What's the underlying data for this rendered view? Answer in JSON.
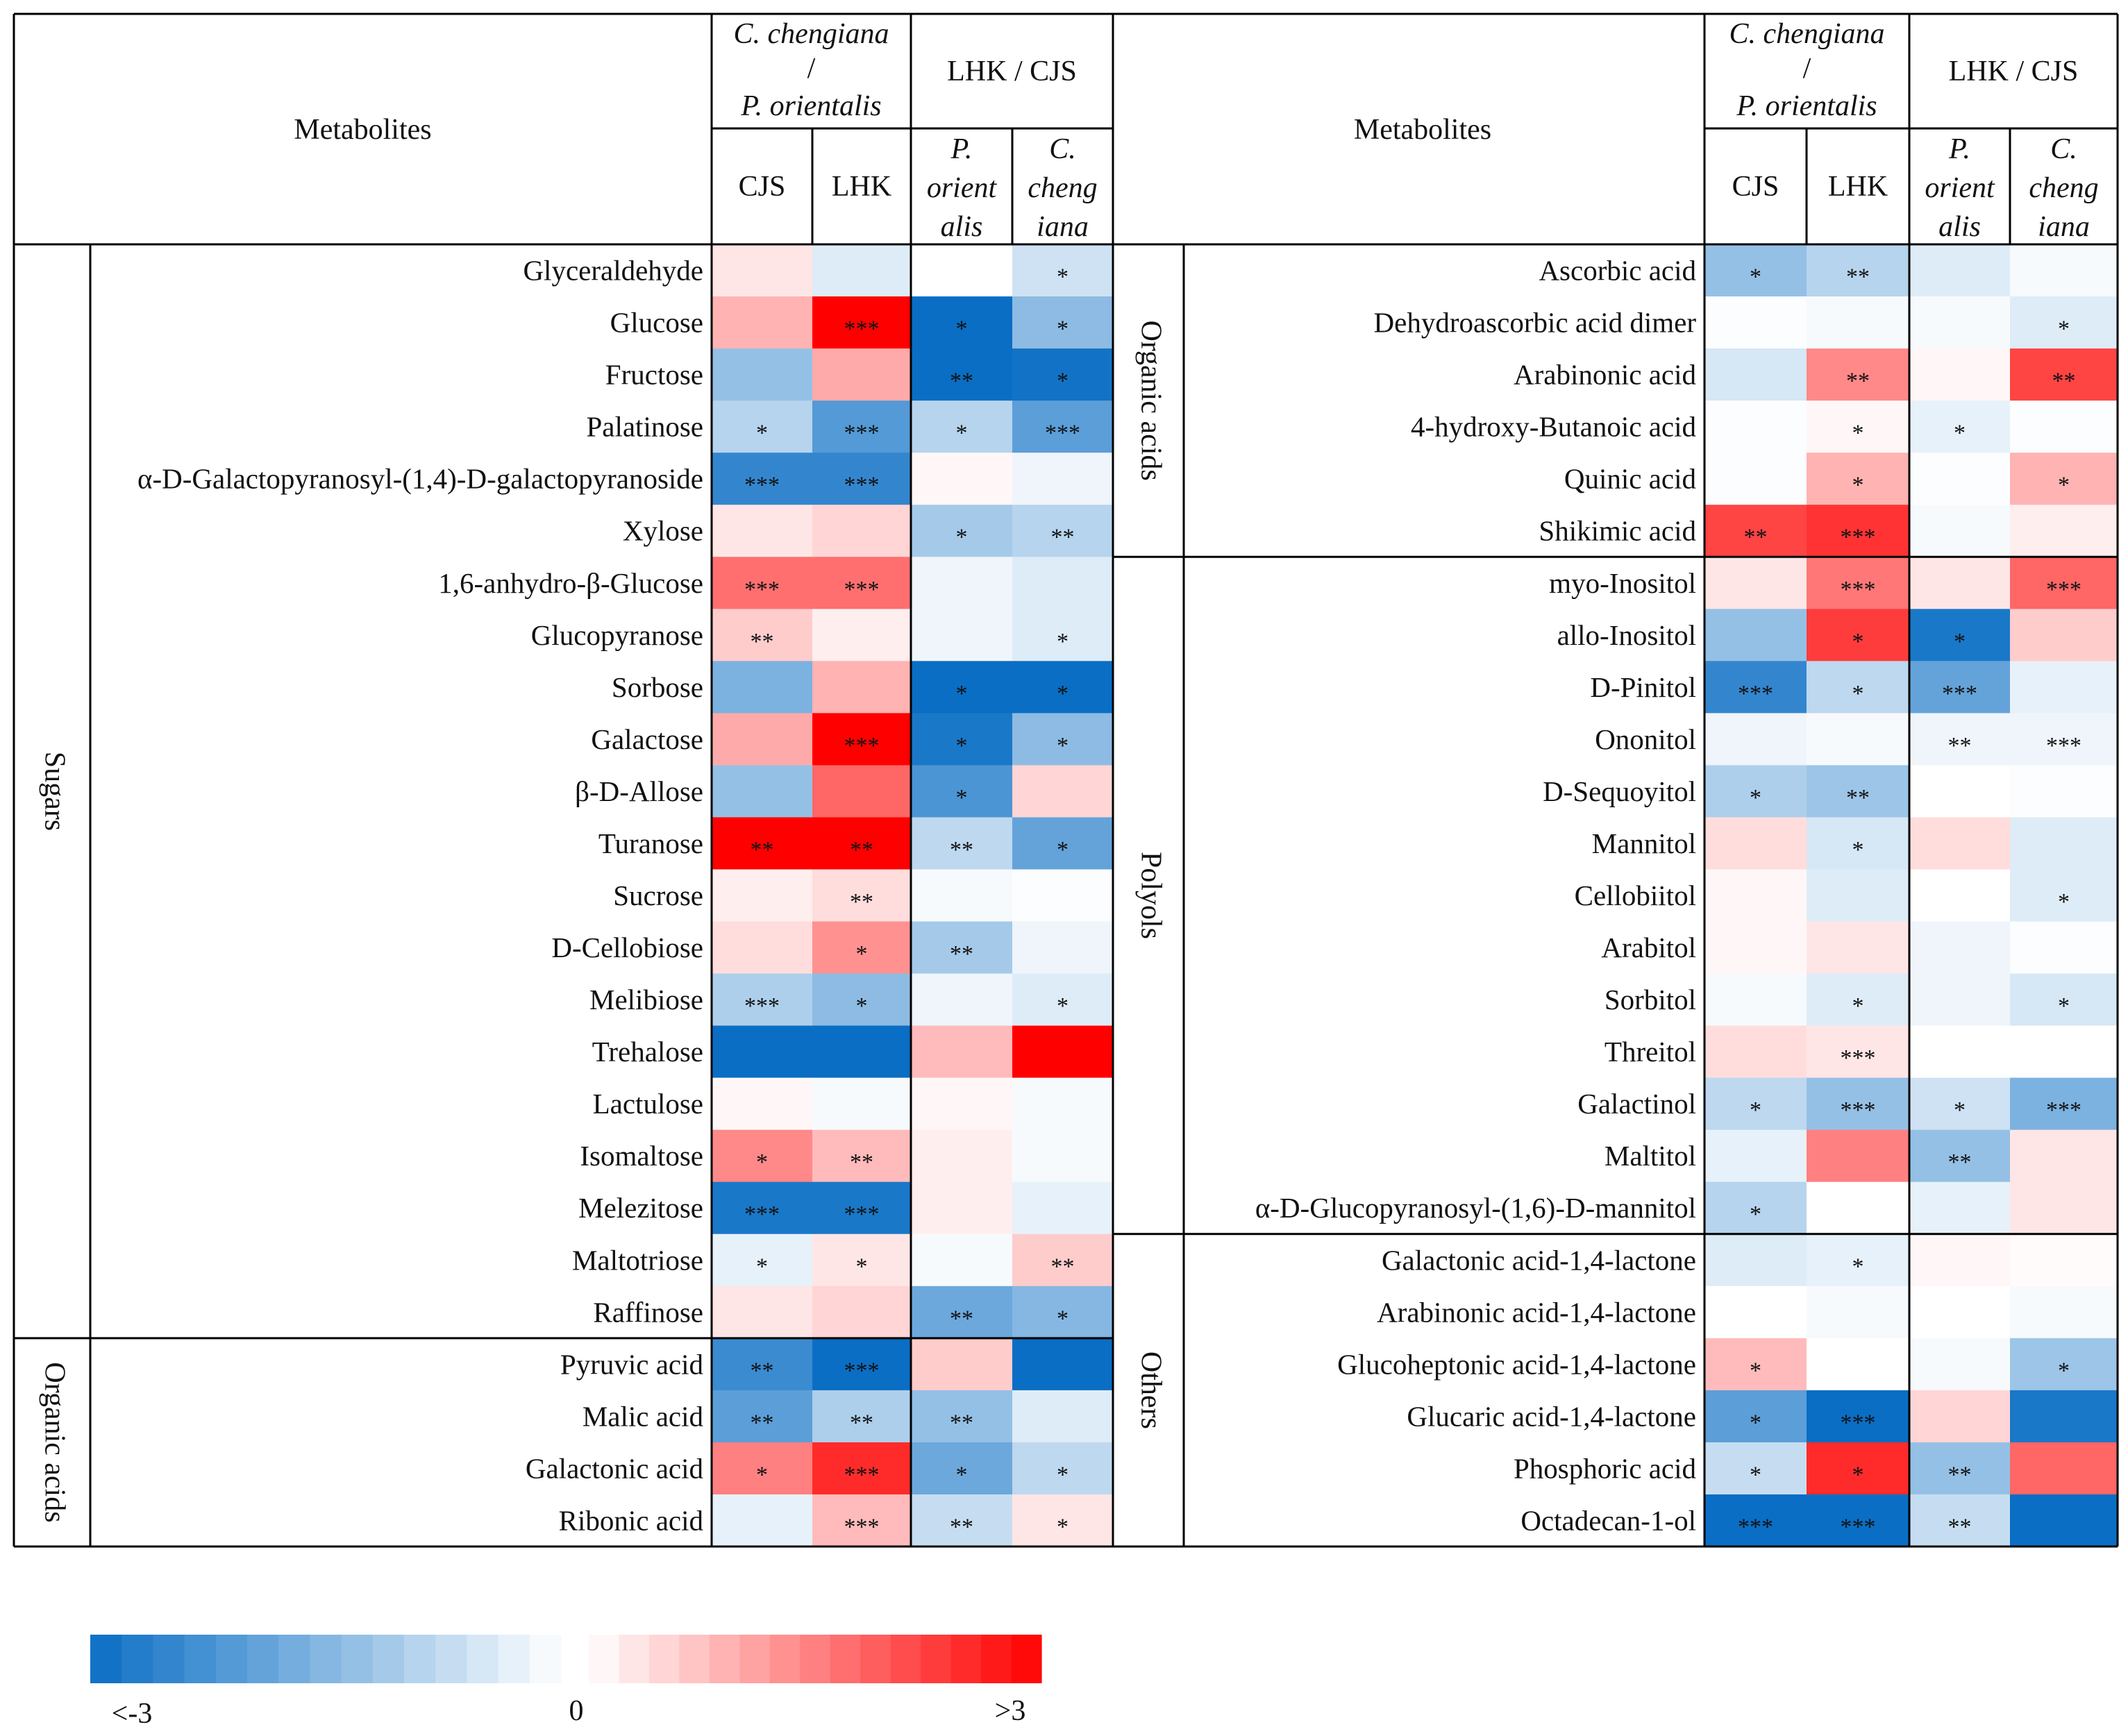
{
  "chart_data": {
    "type": "heatmap",
    "title": "",
    "value_description": "log2 fold change; color scale from <-3 (blue) through 0 (white) to >3 (red); asterisks mark significance",
    "header": {
      "metabolites": "Metabolites",
      "group1_title_line1": "C. chengiana",
      "group1_title_line2": "/",
      "group1_title_line3": "P. orientalis",
      "group2_title": "LHK / CJS",
      "columns": [
        {
          "key": "cjs",
          "lines": [
            "CJS"
          ],
          "italic": false
        },
        {
          "key": "lhk",
          "lines": [
            "LHK"
          ],
          "italic": false
        },
        {
          "key": "po",
          "lines": [
            "P.",
            "orient",
            "alis"
          ],
          "italic": true
        },
        {
          "key": "cc",
          "lines": [
            "C.",
            "cheng",
            "iana"
          ],
          "italic": true
        }
      ]
    },
    "panels": [
      {
        "side": "left",
        "categories": [
          {
            "name": "Sugars",
            "rows": [
              {
                "name": "Glyceraldehyde",
                "values": [
                  0.3,
                  -0.4,
                  0.0,
                  -0.6
                ],
                "stars": [
                  "",
                  "",
                  "",
                  "*"
                ]
              },
              {
                "name": "Glucose",
                "values": [
                  0.9,
                  3.0,
                  -3.0,
                  -1.4
                ],
                "stars": [
                  "",
                  "***",
                  "*",
                  "*"
                ]
              },
              {
                "name": "Fructose",
                "values": [
                  -1.3,
                  1.0,
                  -3.0,
                  -2.9
                ],
                "stars": [
                  "",
                  "",
                  "**",
                  "*"
                ]
              },
              {
                "name": "Palatinose",
                "values": [
                  -0.9,
                  -2.1,
                  -0.9,
                  -2.0
                ],
                "stars": [
                  "*",
                  "***",
                  "*",
                  "***"
                ]
              },
              {
                "name": "α-D-Galactopyranosyl-(1,4)-D-galactopyranoside",
                "values": [
                  -2.5,
                  -2.5,
                  0.1,
                  -0.2
                ],
                "stars": [
                  "***",
                  "***",
                  "",
                  ""
                ]
              },
              {
                "name": "Xylose",
                "values": [
                  0.3,
                  0.5,
                  -1.1,
                  -0.9
                ],
                "stars": [
                  "",
                  "",
                  "*",
                  "**"
                ]
              },
              {
                "name": "1,6-anhydro-β-Glucose",
                "values": [
                  1.7,
                  1.7,
                  -0.2,
                  -0.4
                ],
                "stars": [
                  "***",
                  "***",
                  "",
                  ""
                ]
              },
              {
                "name": "Glucopyranose",
                "values": [
                  0.6,
                  0.2,
                  -0.2,
                  -0.4
                ],
                "stars": [
                  "**",
                  "",
                  "",
                  "*"
                ]
              },
              {
                "name": "Sorbose",
                "values": [
                  -1.6,
                  0.9,
                  -3.0,
                  -3.0
                ],
                "stars": [
                  "",
                  "",
                  "*",
                  "*"
                ]
              },
              {
                "name": "Galactose",
                "values": [
                  1.0,
                  3.0,
                  -2.8,
                  -1.4
                ],
                "stars": [
                  "",
                  "***",
                  "*",
                  "*"
                ]
              },
              {
                "name": "β-D-Allose",
                "values": [
                  -1.3,
                  1.8,
                  -2.2,
                  0.5
                ],
                "stars": [
                  "",
                  "",
                  "*",
                  ""
                ]
              },
              {
                "name": "Turanose",
                "values": [
                  3.0,
                  3.0,
                  -0.8,
                  -1.9
                ],
                "stars": [
                  "**",
                  "**",
                  "**",
                  "*"
                ]
              },
              {
                "name": "Sucrose",
                "values": [
                  0.2,
                  0.4,
                  -0.1,
                  -0.05
                ],
                "stars": [
                  "",
                  "**",
                  "",
                  ""
                ]
              },
              {
                "name": "D-Cellobiose",
                "values": [
                  0.4,
                  1.3,
                  -1.1,
                  -0.2
                ],
                "stars": [
                  "",
                  "*",
                  "**",
                  ""
                ]
              },
              {
                "name": "Melibiose",
                "values": [
                  -1.0,
                  -1.4,
                  -0.2,
                  -0.4
                ],
                "stars": [
                  "***",
                  "*",
                  "",
                  "*"
                ]
              },
              {
                "name": "Trehalose",
                "values": [
                  -3.0,
                  -3.0,
                  0.8,
                  3.0
                ],
                "stars": [
                  "",
                  "",
                  "",
                  ""
                ]
              },
              {
                "name": "Lactulose",
                "values": [
                  0.1,
                  -0.1,
                  0.1,
                  -0.1
                ],
                "stars": [
                  "",
                  "",
                  "",
                  ""
                ]
              },
              {
                "name": "Isomaltose",
                "values": [
                  1.4,
                  0.8,
                  0.2,
                  -0.1
                ],
                "stars": [
                  "*",
                  "**",
                  "",
                  ""
                ]
              },
              {
                "name": "Melezitose",
                "values": [
                  -2.8,
                  -2.8,
                  0.2,
                  -0.3
                ],
                "stars": [
                  "***",
                  "***",
                  "",
                  ""
                ]
              },
              {
                "name": "Maltotriose",
                "values": [
                  -0.3,
                  0.3,
                  -0.1,
                  0.6
                ],
                "stars": [
                  "*",
                  "*",
                  "",
                  "**"
                ]
              },
              {
                "name": "Raffinose",
                "values": [
                  0.3,
                  0.5,
                  -1.8,
                  -1.5
                ],
                "stars": [
                  "",
                  "",
                  "**",
                  "*"
                ]
              }
            ]
          },
          {
            "name": "Organic acids",
            "rows": [
              {
                "name": "Pyruvic acid",
                "values": [
                  -2.4,
                  -3.0,
                  0.6,
                  -3.0
                ],
                "stars": [
                  "**",
                  "***",
                  "",
                  ""
                ]
              },
              {
                "name": "Malic acid",
                "values": [
                  -2.0,
                  -1.0,
                  -1.3,
                  -0.4
                ],
                "stars": [
                  "**",
                  "**",
                  "**",
                  ""
                ]
              },
              {
                "name": "Galactonic acid",
                "values": [
                  1.5,
                  2.5,
                  -1.8,
                  -0.8
                ],
                "stars": [
                  "*",
                  "***",
                  "*",
                  "*"
                ]
              },
              {
                "name": "Ribonic acid",
                "values": [
                  -0.3,
                  0.8,
                  -0.7,
                  0.3
                ],
                "stars": [
                  "",
                  "***",
                  "**",
                  "*"
                ]
              }
            ]
          }
        ]
      },
      {
        "side": "right",
        "categories": [
          {
            "name": "Organic acids",
            "rows": [
              {
                "name": "Ascorbic acid",
                "values": [
                  -1.3,
                  -0.9,
                  -0.4,
                  -0.1
                ],
                "stars": [
                  "*",
                  "**",
                  "",
                  ""
                ]
              },
              {
                "name": "Dehydroascorbic acid dimer",
                "values": [
                  -0.05,
                  -0.1,
                  -0.1,
                  -0.4
                ],
                "stars": [
                  "",
                  "",
                  "",
                  "*"
                ]
              },
              {
                "name": "Arabinonic acid",
                "values": [
                  -0.5,
                  1.4,
                  0.1,
                  2.2
                ],
                "stars": [
                  "",
                  "**",
                  "",
                  "**"
                ]
              },
              {
                "name": "4-hydroxy-Butanoic acid",
                "values": [
                  -0.05,
                  0.1,
                  -0.3,
                  -0.05
                ],
                "stars": [
                  "",
                  "*",
                  "*",
                  ""
                ]
              },
              {
                "name": "Quinic acid",
                "values": [
                  -0.05,
                  0.9,
                  -0.05,
                  0.9
                ],
                "stars": [
                  "",
                  "*",
                  "",
                  "*"
                ]
              },
              {
                "name": "Shikimic acid",
                "values": [
                  2.2,
                  2.4,
                  -0.1,
                  0.2
                ],
                "stars": [
                  "**",
                  "***",
                  "",
                  ""
                ]
              }
            ]
          },
          {
            "name": "Polyols",
            "rows": [
              {
                "name": "myo-Inositol",
                "values": [
                  0.3,
                  1.6,
                  0.3,
                  1.8
                ],
                "stars": [
                  "",
                  "***",
                  "",
                  "***"
                ]
              },
              {
                "name": "allo-Inositol",
                "values": [
                  -1.3,
                  2.3,
                  -2.8,
                  0.6
                ],
                "stars": [
                  "",
                  "*",
                  "*",
                  ""
                ]
              },
              {
                "name": "D-Pinitol",
                "values": [
                  -2.5,
                  -0.8,
                  -1.9,
                  -0.3
                ],
                "stars": [
                  "***",
                  "*",
                  "***",
                  ""
                ]
              },
              {
                "name": "Ononitol",
                "values": [
                  -0.2,
                  -0.1,
                  -0.2,
                  -0.2
                ],
                "stars": [
                  "",
                  "",
                  "**",
                  "***"
                ]
              },
              {
                "name": "D-Sequoyitol",
                "values": [
                  -1.0,
                  -1.2,
                  0.0,
                  -0.05
                ],
                "stars": [
                  "*",
                  "**",
                  "",
                  ""
                ]
              },
              {
                "name": "Mannitol",
                "values": [
                  0.4,
                  -0.5,
                  0.4,
                  -0.4
                ],
                "stars": [
                  "",
                  "*",
                  "",
                  ""
                ]
              },
              {
                "name": "Cellobiitol",
                "values": [
                  0.1,
                  -0.4,
                  0.0,
                  -0.4
                ],
                "stars": [
                  "",
                  "",
                  "",
                  "*"
                ]
              },
              {
                "name": "Arabitol",
                "values": [
                  0.1,
                  0.3,
                  -0.2,
                  -0.05
                ],
                "stars": [
                  "",
                  "",
                  "",
                  ""
                ]
              },
              {
                "name": "Sorbitol",
                "values": [
                  -0.1,
                  -0.4,
                  -0.2,
                  -0.5
                ],
                "stars": [
                  "",
                  "*",
                  "",
                  "*"
                ]
              },
              {
                "name": "Threitol",
                "values": [
                  0.4,
                  0.3,
                  0.0,
                  0.0
                ],
                "stars": [
                  "",
                  "***",
                  "",
                  ""
                ]
              },
              {
                "name": "Galactinol",
                "values": [
                  -0.8,
                  -1.3,
                  -0.6,
                  -1.6
                ],
                "stars": [
                  "*",
                  "***",
                  "*",
                  "***"
                ]
              },
              {
                "name": "Maltitol",
                "values": [
                  -0.3,
                  1.5,
                  -1.3,
                  0.3
                ],
                "stars": [
                  "",
                  "",
                  "**",
                  ""
                ]
              },
              {
                "name": "α-D-Glucopyranosyl-(1,6)-D-mannitol",
                "values": [
                  -0.9,
                  0.0,
                  -0.3,
                  0.3
                ],
                "stars": [
                  "*",
                  "",
                  "",
                  ""
                ]
              }
            ]
          },
          {
            "name": "Others",
            "rows": [
              {
                "name": "Galactonic acid-1,4-lactone",
                "values": [
                  -0.4,
                  -0.3,
                  0.1,
                  0.05
                ],
                "stars": [
                  "",
                  "*",
                  "",
                  ""
                ]
              },
              {
                "name": "Arabinonic acid-1,4-lactone",
                "values": [
                  0.0,
                  -0.1,
                  0.0,
                  -0.1
                ],
                "stars": [
                  "",
                  "",
                  "",
                  ""
                ]
              },
              {
                "name": "Glucoheptonic acid-1,4-lactone",
                "values": [
                  0.8,
                  0.0,
                  -0.1,
                  -1.2
                ],
                "stars": [
                  "*",
                  "",
                  "",
                  "*"
                ]
              },
              {
                "name": "Glucaric acid-1,4-lactone",
                "values": [
                  -2.0,
                  -3.0,
                  0.5,
                  -2.8
                ],
                "stars": [
                  "*",
                  "***",
                  "",
                  ""
                ]
              },
              {
                "name": "Phosphoric acid",
                "values": [
                  -0.7,
                  2.5,
                  -1.3,
                  1.8
                ],
                "stars": [
                  "*",
                  "*",
                  "**",
                  ""
                ]
              },
              {
                "name": "Octadecan-1-ol",
                "values": [
                  -3.0,
                  -3.0,
                  -0.7,
                  -3.0
                ],
                "stars": [
                  "***",
                  "***",
                  "**",
                  ""
                ]
              }
            ]
          }
        ]
      }
    ],
    "legend": {
      "min_label": "<-3",
      "mid_label": "0",
      "max_label": ">3",
      "range": [
        -3,
        3
      ],
      "low_color": "#0a6ec4",
      "high_color": "#ff0000",
      "mid_color": "#ffffff"
    }
  }
}
